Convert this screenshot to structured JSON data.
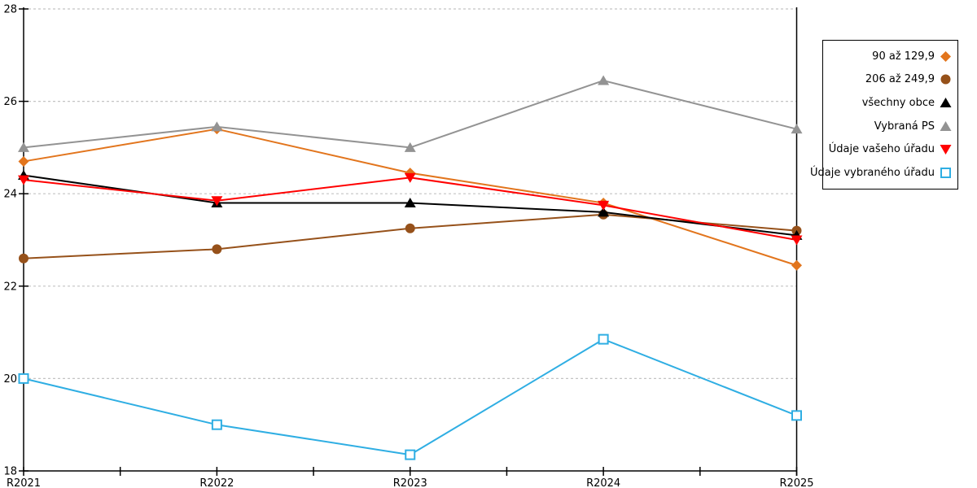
{
  "chart_data": {
    "type": "line",
    "title": "",
    "xlabel": "",
    "ylabel": "",
    "categories": [
      "R2021",
      "R2022",
      "R2023",
      "R2024",
      "R2025"
    ],
    "series": [
      {
        "name": "90 až 129,9",
        "marker": "diamond",
        "color": "#E2751D",
        "values": [
          24.7,
          25.4,
          24.45,
          23.8,
          22.45
        ]
      },
      {
        "name": "206 až 249,9",
        "marker": "circle",
        "color": "#96511A",
        "values": [
          22.6,
          22.8,
          23.25,
          23.55,
          23.2
        ]
      },
      {
        "name": "všechny obce",
        "marker": "triangle-up",
        "color": "#000000",
        "values": [
          24.4,
          23.8,
          23.8,
          23.6,
          23.1
        ]
      },
      {
        "name": "Vybraná PS",
        "marker": "triangle-up",
        "color": "#939393",
        "values": [
          25.0,
          25.45,
          25.0,
          26.45,
          25.4
        ]
      },
      {
        "name": "Údaje vašeho úřadu",
        "marker": "triangle-down",
        "color": "#FF0000",
        "values": [
          24.3,
          23.85,
          24.35,
          23.75,
          23.0
        ]
      },
      {
        "name": "Údaje vybraného úřadu",
        "marker": "square-open",
        "color": "#2FAEE3",
        "values": [
          20.0,
          19.0,
          18.35,
          20.85,
          19.2
        ]
      }
    ],
    "ylim": [
      18,
      28
    ],
    "ytick_step": 2,
    "grid": "horizontal dashed, at 20/22/24/26/28",
    "legend_position": "right"
  },
  "colors": {
    "background": "#FFFFFF",
    "axis": "#000000",
    "gridline": "#C4C4C4",
    "legend_border": "#000000"
  }
}
